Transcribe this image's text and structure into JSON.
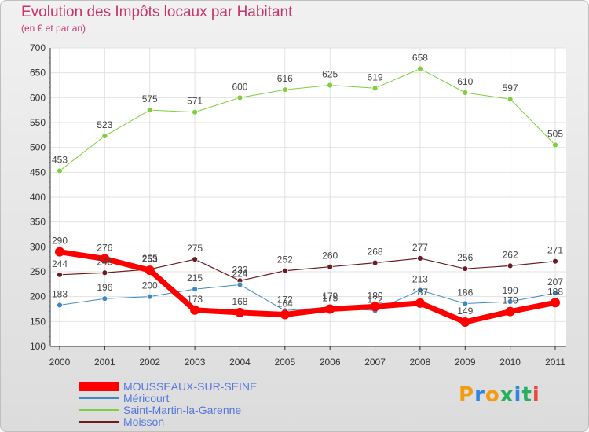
{
  "chart_data": {
    "type": "line",
    "title": "Evolution des Impôts locaux par Habitant",
    "subtitle": "(en € et par an)",
    "xlabel": "",
    "ylabel": "",
    "x": [
      "2000",
      "2001",
      "2002",
      "2003",
      "2004",
      "2005",
      "2006",
      "2007",
      "2008",
      "2009",
      "2010",
      "2011"
    ],
    "ylim": [
      100,
      700
    ],
    "yticks": [
      100,
      150,
      200,
      250,
      300,
      350,
      400,
      450,
      500,
      550,
      600,
      650,
      700
    ],
    "grid": true,
    "legend_position": "bottom-left",
    "series": [
      {
        "name": "MOUSSEAUX-SUR-SEINE",
        "color": "#ff0000",
        "values": [
          290,
          276,
          253,
          173,
          168,
          164,
          175,
          180,
          187,
          149,
          170,
          188
        ]
      },
      {
        "name": "Méricourt",
        "color": "#3f88c5",
        "values": [
          183,
          196,
          200,
          215,
          224,
          172,
          179,
          172,
          213,
          186,
          190,
          207
        ]
      },
      {
        "name": "Saint-Martin-la-Garenne",
        "color": "#7fce3d",
        "values": [
          453,
          523,
          575,
          571,
          600,
          616,
          625,
          619,
          658,
          610,
          597,
          505
        ]
      },
      {
        "name": "Moisson",
        "color": "#6b1c23",
        "values": [
          244,
          248,
          255,
          275,
          232,
          252,
          260,
          268,
          277,
          256,
          262,
          271
        ]
      }
    ]
  },
  "brand": {
    "logo_text": "Proxiti",
    "logo_colors": [
      "#f39c12",
      "#2e86de",
      "#f39c12",
      "#27ae60",
      "#2e86de",
      "#27ae60",
      "#e74c3c"
    ]
  }
}
